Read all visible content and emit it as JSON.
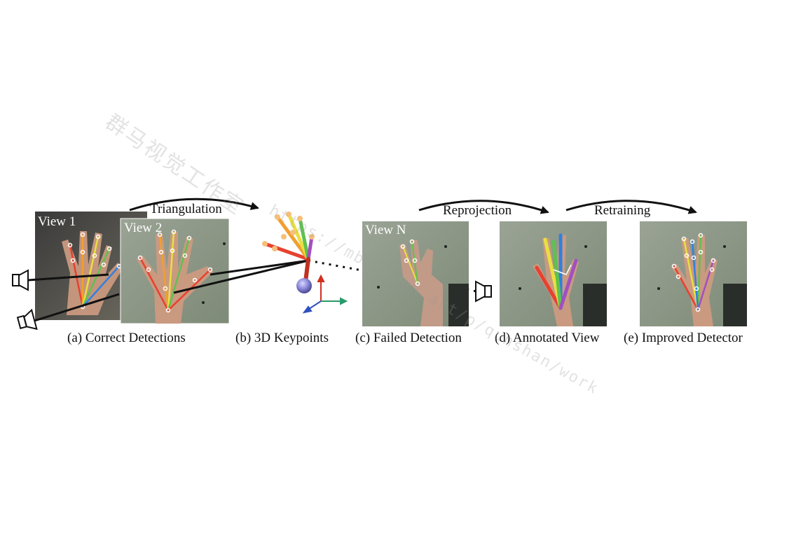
{
  "panels": {
    "view1": {
      "label": "View 1"
    },
    "view2": {
      "label": "View 2"
    },
    "viewN": {
      "label": "View N"
    }
  },
  "arrows": {
    "triangulation": "Triangulation",
    "reprojection": "Reprojection",
    "retraining": "Retraining"
  },
  "captions": {
    "a": "(a) Correct Detections",
    "b": "(b) 3D Keypoints",
    "c": "(c) Failed Detection",
    "d": "(d) Annotated View",
    "e": "(e) Improved Detector"
  },
  "watermark": {
    "cn": "群马视觉工作室",
    "url": "https://mbd.open.art/p/qunshan/work"
  },
  "icons": {
    "camera": "camera-icon",
    "axes": "xyz-axes-icon"
  },
  "colors": {
    "photo_bg": "#8c9786",
    "skin": "#c99a80",
    "keypoint": "#ffffff",
    "finger_colors": [
      "#e8412f",
      "#f0a030",
      "#e8e040",
      "#60c050",
      "#3080e0",
      "#a050c0"
    ],
    "axis_x": "#2a9a6a",
    "axis_y": "#d03020",
    "axis_z": "#3050c0",
    "sphere": "#8a88d8"
  }
}
